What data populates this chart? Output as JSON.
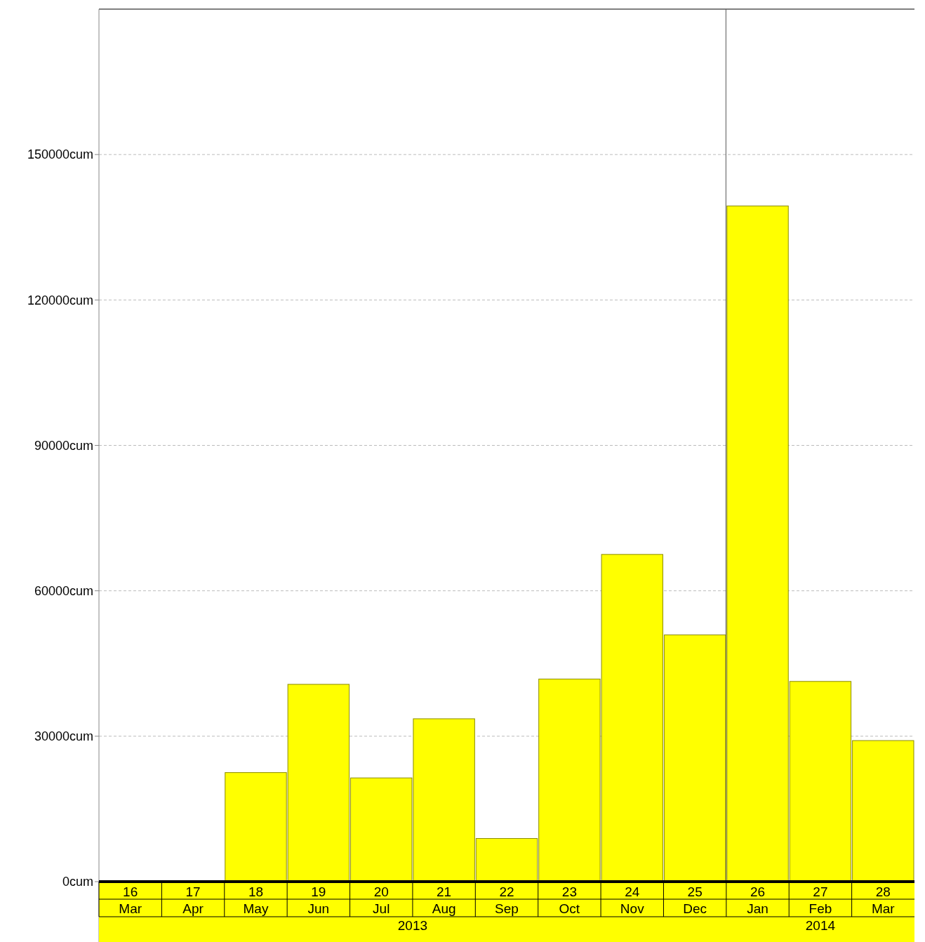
{
  "chart_data": {
    "type": "bar",
    "categories": [
      "Mar",
      "Apr",
      "May",
      "Jun",
      "Jul",
      "Aug",
      "Sep",
      "Oct",
      "Nov",
      "Dec",
      "Jan",
      "Feb",
      "Mar"
    ],
    "values": [
      0,
      0,
      22500,
      40700,
      21400,
      33600,
      8900,
      41800,
      67500,
      50900,
      139400,
      41300,
      29100
    ],
    "color": "#ffff00",
    "ylim": [
      0,
      180000
    ],
    "yticks": [
      {
        "value": 0,
        "label": "0cum"
      },
      {
        "value": 30000,
        "label": "30000cum"
      },
      {
        "value": 60000,
        "label": "60000cum"
      },
      {
        "value": 90000,
        "label": "90000cum"
      },
      {
        "value": 120000,
        "label": "120000cum"
      },
      {
        "value": 150000,
        "label": "150000cum"
      }
    ],
    "grid": "y",
    "ref_lines": [
      {
        "axis": "x",
        "value": "Jan",
        "color": "#555555"
      }
    ],
    "annotations": [
      "16",
      "17",
      "18",
      "19",
      "20",
      "21",
      "22",
      "23",
      "24",
      "25",
      "26",
      "27",
      "28",
      "2013",
      "2014"
    ]
  }
}
